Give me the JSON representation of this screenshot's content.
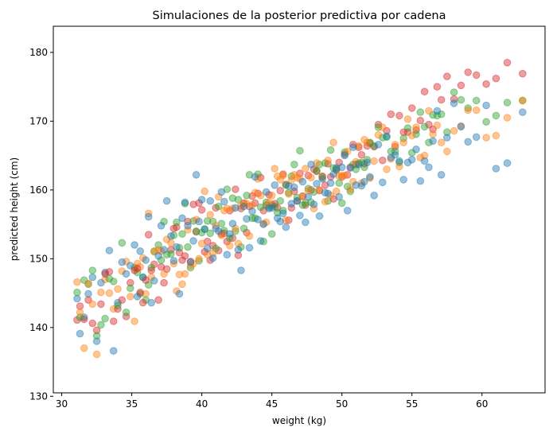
{
  "chart_data": {
    "type": "scatter",
    "title": "Simulaciones de la posterior predictiva por cadena",
    "xlabel": "weight (kg)",
    "ylabel": "predicted height (cm)",
    "xlim": [
      29.4,
      64.5
    ],
    "ylim": [
      130.5,
      183.8
    ],
    "xticks": [
      30,
      35,
      40,
      45,
      50,
      55,
      60
    ],
    "yticks": [
      130,
      140,
      150,
      160,
      170,
      180
    ],
    "grid": false,
    "marker_alpha": 0.45,
    "colors": [
      "#1f77b4",
      "#ff7f0e",
      "#2ca02c",
      "#d62728"
    ],
    "weights": [
      31.1,
      31.3,
      31.6,
      31.9,
      32.2,
      32.5,
      32.8,
      33.1,
      33.4,
      33.7,
      34.0,
      34.3,
      34.6,
      34.9,
      35.2,
      35.4,
      35.6,
      35.8,
      36.0,
      36.2,
      36.4,
      36.6,
      36.9,
      37.1,
      37.3,
      37.5,
      37.8,
      38.0,
      38.2,
      38.4,
      38.6,
      38.8,
      39.0,
      39.2,
      39.4,
      39.6,
      39.8,
      40.0,
      40.2,
      40.4,
      40.6,
      40.8,
      41.0,
      41.2,
      41.4,
      41.6,
      41.8,
      42.0,
      42.2,
      42.4,
      42.6,
      42.8,
      43.0,
      43.2,
      43.4,
      43.6,
      43.8,
      44.0,
      44.2,
      44.4,
      44.6,
      44.8,
      45.0,
      45.2,
      45.4,
      45.6,
      45.8,
      46.0,
      46.2,
      46.4,
      46.6,
      46.8,
      47.0,
      47.2,
      47.4,
      47.6,
      47.8,
      48.0,
      48.2,
      48.4,
      48.6,
      48.8,
      49.0,
      49.2,
      49.4,
      49.6,
      49.8,
      50.0,
      50.2,
      50.4,
      50.6,
      50.8,
      51.0,
      51.2,
      51.4,
      51.6,
      51.8,
      52.0,
      52.3,
      52.6,
      52.9,
      53.2,
      53.5,
      53.8,
      54.1,
      54.4,
      54.7,
      55.0,
      55.3,
      55.6,
      55.9,
      56.2,
      56.5,
      56.8,
      57.1,
      57.5,
      58.0,
      58.5,
      59.0,
      59.6,
      60.3,
      61.0,
      61.8,
      62.9
    ],
    "series": [
      {
        "values": [
          144.2,
          139.1,
          141.5,
          144.9,
          147.3,
          138.0,
          146.5,
          148.0,
          151.2,
          136.6,
          143.6,
          149.5,
          147.8,
          149.0,
          152.0,
          144.5,
          151.1,
          147.3,
          149.8,
          156.1,
          143.6,
          146.8,
          150.4,
          154.8,
          151.3,
          158.4,
          153.3,
          149.7,
          151.7,
          144.9,
          155.9,
          158.2,
          154.8,
          149.5,
          152.6,
          162.2,
          155.4,
          158.6,
          154.3,
          151.5,
          158.4,
          150.1,
          154.4,
          154.0,
          159.7,
          158.3,
          150.6,
          153.6,
          155.1,
          157.4,
          151.3,
          148.3,
          157.6,
          155.8,
          151.6,
          156.9,
          161.9,
          155.7,
          152.6,
          155.0,
          159.7,
          157.3,
          157.4,
          160.7,
          155.9,
          155.4,
          156.6,
          154.6,
          160.6,
          158.0,
          160.4,
          158.4,
          156.3,
          161.2,
          155.3,
          159.0,
          163.7,
          157.9,
          160.9,
          156.2,
          161.6,
          159.6,
          159.5,
          161.0,
          162.3,
          163.2,
          159.0,
          163.3,
          165.0,
          157.0,
          163.2,
          166.2,
          160.7,
          163.7,
          160.6,
          161.2,
          164.0,
          161.9,
          159.2,
          166.6,
          161.1,
          167.8,
          164.7,
          165.1,
          164.2,
          161.5,
          164.0,
          164.4,
          165.9,
          161.3,
          164.2,
          163.3,
          167.1,
          171.5,
          162.2,
          167.6,
          172.6,
          169.2,
          167.0,
          167.7,
          172.3,
          163.1,
          163.9,
          171.3
        ]
      },
      {
        "values": [
          146.6,
          142.2,
          137.0,
          146.4,
          143.4,
          136.1,
          145.1,
          147.0,
          145.0,
          142.7,
          145.6,
          148.2,
          149.6,
          144.5,
          140.9,
          149.3,
          148.8,
          150.1,
          144.9,
          156.6,
          147.3,
          151.0,
          151.3,
          151.1,
          147.8,
          152.8,
          152.3,
          149.3,
          145.3,
          147.7,
          146.3,
          147.8,
          154.2,
          149.0,
          149.3,
          155.7,
          150.0,
          152.2,
          159.8,
          150.6,
          156.4,
          150.8,
          154.8,
          159.0,
          153.4,
          157.0,
          157.3,
          151.9,
          157.3,
          154.4,
          152.2,
          157.7,
          158.0,
          158.0,
          153.3,
          157.8,
          159.6,
          161.6,
          159.2,
          155.1,
          155.3,
          158.2,
          159.2,
          163.1,
          162.0,
          161.5,
          162.1,
          155.6,
          159.4,
          161.4,
          162.2,
          161.8,
          161.6,
          159.0,
          163.1,
          159.9,
          161.8,
          157.3,
          163.9,
          160.0,
          161.8,
          158.3,
          164.3,
          159.2,
          166.9,
          159.8,
          162.0,
          162.1,
          162.1,
          165.6,
          160.1,
          161.2,
          164.1,
          166.4,
          161.0,
          167.3,
          166.9,
          161.7,
          164.2,
          168.0,
          169.1,
          163.0,
          164.5,
          166.6,
          163.4,
          166.9,
          170.3,
          167.9,
          169.1,
          164.7,
          165.0,
          171.5,
          168.1,
          169.4,
          166.9,
          165.6,
          168.6,
          169.3,
          171.6,
          171.6,
          167.6,
          167.9,
          170.5,
          173.0
        ]
      },
      {
        "values": [
          145.1,
          141.5,
          146.9,
          146.3,
          148.3,
          138.8,
          140.4,
          141.3,
          147.1,
          146.7,
          143.2,
          152.3,
          142.2,
          145.7,
          148.7,
          148.0,
          144.9,
          147.3,
          144.0,
          146.2,
          148.7,
          151.1,
          152.0,
          149.8,
          155.4,
          150.6,
          150.7,
          153.4,
          155.3,
          151.6,
          153.6,
          158.0,
          151.7,
          148.7,
          155.5,
          154.0,
          149.7,
          153.8,
          154.3,
          155.5,
          153.7,
          155.4,
          151.5,
          157.6,
          155.1,
          154.1,
          160.1,
          153.0,
          158.8,
          154.0,
          158.6,
          151.7,
          154.4,
          159.2,
          162.2,
          155.9,
          155.9,
          162.3,
          157.5,
          152.5,
          158.2,
          157.5,
          153.6,
          157.6,
          156.7,
          158.4,
          157.0,
          160.7,
          159.6,
          162.0,
          163.7,
          158.9,
          165.7,
          157.8,
          158.1,
          160.2,
          158.2,
          159.7,
          162.8,
          163.7,
          161.9,
          163.9,
          158.4,
          165.8,
          163.2,
          163.0,
          161.0,
          158.1,
          165.5,
          160.5,
          159.8,
          163.7,
          163.0,
          163.9,
          164.0,
          163.3,
          164.4,
          166.9,
          166.4,
          169.1,
          167.6,
          167.7,
          165.6,
          165.6,
          164.0,
          167.5,
          169.0,
          165.4,
          168.1,
          171.3,
          169.2,
          166.9,
          170.9,
          170.8,
          171.0,
          168.4,
          174.2,
          173.1,
          171.9,
          173.0,
          169.9,
          170.8,
          172.7,
          173.0
        ]
      },
      {
        "values": [
          141.1,
          143.1,
          141.2,
          144.0,
          140.6,
          139.6,
          143.4,
          147.8,
          148.1,
          140.9,
          142.7,
          144.0,
          141.6,
          146.5,
          148.3,
          148.6,
          145.1,
          143.6,
          146.9,
          153.5,
          148.3,
          149.2,
          144.0,
          148.8,
          146.5,
          148.5,
          151.3,
          154.4,
          154.6,
          150.9,
          149.8,
          150.4,
          155.4,
          149.6,
          157.9,
          153.9,
          158.1,
          157.1,
          151.0,
          152.5,
          149.8,
          151.9,
          157.4,
          151.2,
          153.6,
          153.7,
          152.5,
          157.0,
          153.0,
          160.1,
          150.5,
          157.3,
          158.1,
          153.8,
          157.6,
          159.1,
          158.1,
          159.5,
          161.8,
          157.0,
          157.8,
          159.3,
          157.8,
          158.0,
          157.4,
          159.9,
          162.3,
          160.8,
          155.6,
          157.4,
          159.8,
          158.4,
          162.4,
          159.1,
          157.8,
          162.1,
          160.0,
          163.0,
          162.7,
          159.9,
          162.0,
          160.7,
          163.8,
          161.9,
          158.7,
          162.9,
          164.0,
          161.9,
          165.2,
          162.2,
          163.3,
          166.6,
          163.7,
          166.2,
          165.1,
          163.8,
          166.4,
          166.8,
          166.3,
          169.5,
          164.3,
          168.6,
          171.0,
          166.3,
          170.8,
          168.4,
          168.4,
          171.9,
          168.7,
          170.1,
          174.3,
          169.5,
          168.8,
          175.0,
          173.1,
          176.5,
          173.2,
          175.2,
          177.1,
          176.7,
          175.4,
          176.2,
          178.5,
          176.9
        ]
      }
    ]
  }
}
